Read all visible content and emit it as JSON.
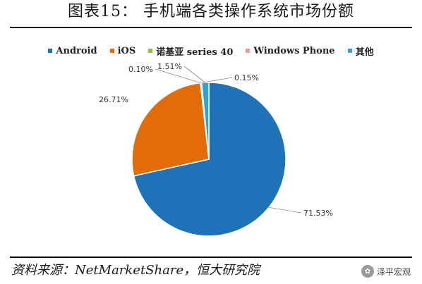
{
  "header": {
    "title": "图表15： 手机端各类操作系统市场份额"
  },
  "footer": {
    "source": "资料来源：NetMarketShare，恒大研究院",
    "brand": "泽平宏观"
  },
  "chart_data": {
    "type": "pie",
    "title": "图表15： 手机端各类操作系统市场份额",
    "legend_position": "top",
    "slices": [
      {
        "name": "Android",
        "value": 71.53,
        "label": "71.53%",
        "color": "#1f72b8"
      },
      {
        "name": "iOS",
        "value": 26.71,
        "label": "26.71%",
        "color": "#e36c0a"
      },
      {
        "name": "诺基亚 series 40",
        "value": 0.1,
        "label": "0.10%",
        "color": "#8fbd44"
      },
      {
        "name": "Windows Phone",
        "value": 0.15,
        "label": "0.15%",
        "color": "#e89a95"
      },
      {
        "name": "其他",
        "value": 1.51,
        "label": "1.51%",
        "color": "#2aa6d4"
      }
    ]
  }
}
